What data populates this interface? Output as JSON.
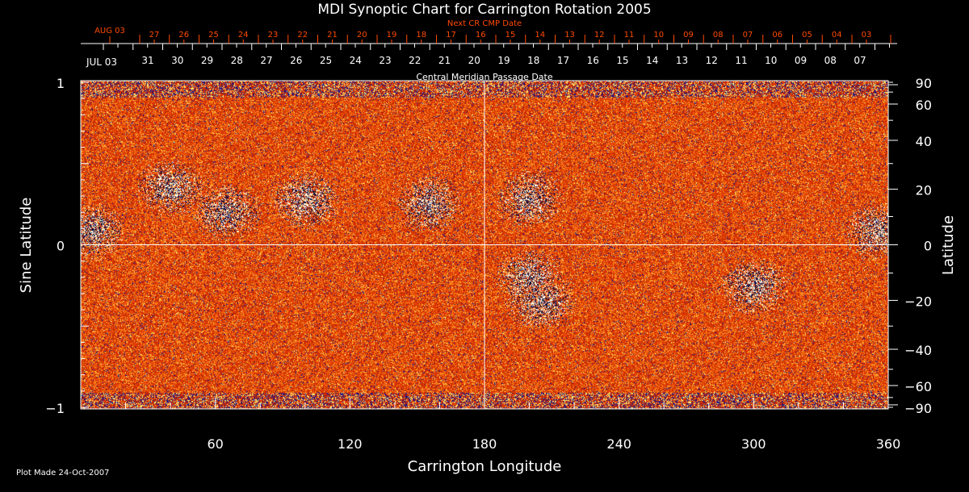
{
  "chart_data": {
    "type": "heatmap",
    "title": "MDI Synoptic Chart for Carrington Rotation 2005",
    "xlabel": "Carrington Longitude",
    "ylabel_left": "Sine Latitude",
    "ylabel_right": "Latitude",
    "xlim": [
      0,
      360
    ],
    "ylim": [
      -1,
      1
    ],
    "x_ticks": [
      "60",
      "120",
      "180",
      "240",
      "300",
      "360"
    ],
    "x_tick_values": [
      60,
      120,
      180,
      240,
      300,
      360
    ],
    "y_left_ticks": [
      "1",
      "0",
      "−1"
    ],
    "y_left_tick_values": [
      1,
      0,
      -1
    ],
    "y_right_ticks": [
      "90",
      "60",
      "40",
      "20",
      "0",
      "−20",
      "−40",
      "−60",
      "−90"
    ],
    "y_right_tick_values": [
      90,
      60,
      40,
      20,
      0,
      -20,
      -40,
      -60,
      -90
    ],
    "top_axis_title": "Central Meridian Passage Date",
    "top_axis_first_label": "JUL 03",
    "top_axis_labels": [
      "31",
      "30",
      "29",
      "28",
      "27",
      "26",
      "25",
      "24",
      "23",
      "22",
      "21",
      "20",
      "19",
      "18",
      "17",
      "16",
      "15",
      "14",
      "13",
      "12",
      "11",
      "10",
      "09",
      "08",
      "07"
    ],
    "next_cr_title": "Next CR CMP Date",
    "next_cr_first_label": "AUG 03",
    "next_cr_labels": [
      "27",
      "26",
      "25",
      "24",
      "23",
      "22",
      "21",
      "20",
      "19",
      "18",
      "17",
      "16",
      "15",
      "14",
      "13",
      "12",
      "11",
      "10",
      "09",
      "08",
      "07",
      "06",
      "05",
      "04",
      "03"
    ],
    "colors": {
      "base": "#e8400a",
      "positive": "#ffffff",
      "negative": "#000060",
      "accent": "#ff4a00"
    },
    "active_regions": [
      {
        "lon": 40,
        "sinlat": 0.35,
        "polarity": "mixed"
      },
      {
        "lon": 65,
        "sinlat": 0.2,
        "polarity": "mixed"
      },
      {
        "lon": 100,
        "sinlat": 0.27,
        "polarity": "mixed"
      },
      {
        "lon": 155,
        "sinlat": 0.25,
        "polarity": "mixed"
      },
      {
        "lon": 200,
        "sinlat": 0.28,
        "polarity": "mixed"
      },
      {
        "lon": 200,
        "sinlat": -0.2,
        "polarity": "mixed"
      },
      {
        "lon": 205,
        "sinlat": -0.35,
        "polarity": "mixed"
      },
      {
        "lon": 300,
        "sinlat": -0.25,
        "polarity": "mixed"
      },
      {
        "lon": 355,
        "sinlat": 0.08,
        "polarity": "mixed"
      },
      {
        "lon": 5,
        "sinlat": 0.08,
        "polarity": "mixed"
      }
    ]
  },
  "footer": "Plot Made 24-Oct-2007"
}
